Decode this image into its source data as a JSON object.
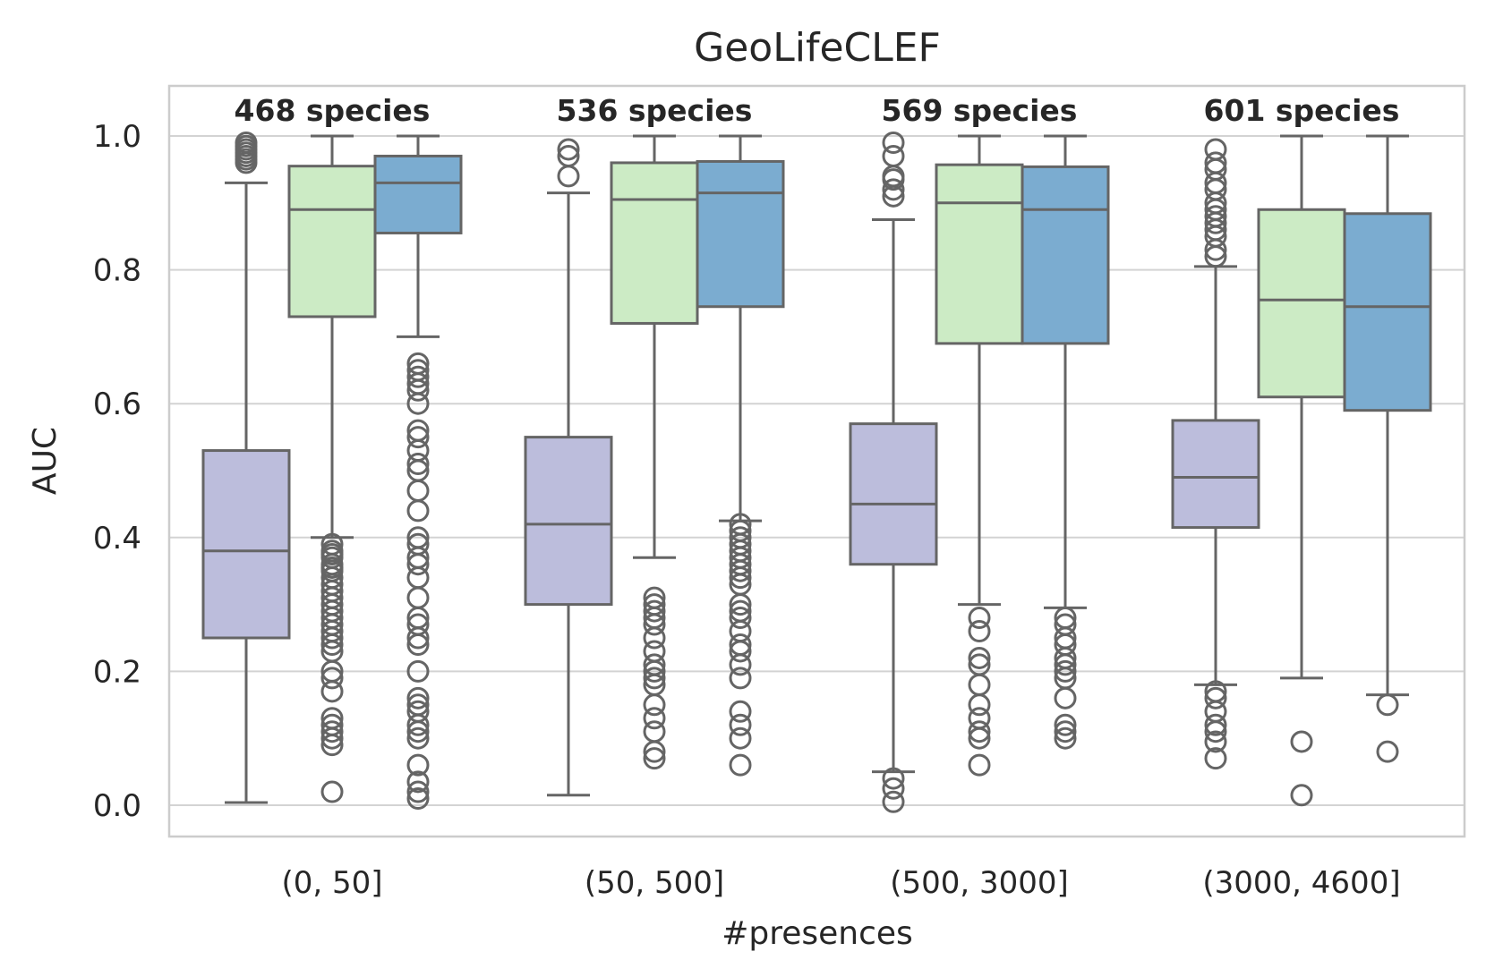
{
  "chart_data": {
    "type": "box",
    "title": "GeoLifeCLEF",
    "xlabel": "#presences",
    "ylabel": "AUC",
    "ylim": [
      -0.045,
      1.075
    ],
    "yticks": [
      "0.0",
      "0.2",
      "0.4",
      "0.6",
      "0.8",
      "1.0"
    ],
    "ytick_values": [
      0.0,
      0.2,
      0.4,
      0.6,
      0.8,
      1.0
    ],
    "grid": true,
    "colors": [
      "#bcbddc",
      "#ccebc5",
      "#7bacd0"
    ],
    "groups": [
      {
        "category": "(0, 50]",
        "annotation": "468 species",
        "boxes": [
          {
            "q1": 0.25,
            "median": 0.38,
            "q3": 0.53,
            "whisker_low": 0.004,
            "whisker_high": 0.93,
            "fliers": [
              0.96,
              0.965,
              0.97,
              0.975,
              0.98,
              0.985,
              0.99
            ]
          },
          {
            "q1": 0.73,
            "median": 0.89,
            "q3": 0.955,
            "whisker_low": 0.4,
            "whisker_high": 1.0,
            "fliers": [
              0.39,
              0.38,
              0.375,
              0.37,
              0.36,
              0.355,
              0.35,
              0.34,
              0.33,
              0.32,
              0.31,
              0.3,
              0.29,
              0.28,
              0.27,
              0.26,
              0.25,
              0.24,
              0.23,
              0.2,
              0.19,
              0.17,
              0.13,
              0.12,
              0.11,
              0.1,
              0.09,
              0.02
            ]
          },
          {
            "q1": 0.855,
            "median": 0.93,
            "q3": 0.97,
            "whisker_low": 0.7,
            "whisker_high": 1.0,
            "fliers": [
              0.66,
              0.65,
              0.64,
              0.63,
              0.62,
              0.6,
              0.56,
              0.55,
              0.53,
              0.51,
              0.5,
              0.47,
              0.44,
              0.4,
              0.39,
              0.37,
              0.36,
              0.34,
              0.31,
              0.28,
              0.27,
              0.25,
              0.24,
              0.2,
              0.16,
              0.15,
              0.14,
              0.12,
              0.11,
              0.1,
              0.06,
              0.035,
              0.02,
              0.01
            ]
          }
        ]
      },
      {
        "category": "(50, 500]",
        "annotation": "536 species",
        "boxes": [
          {
            "q1": 0.3,
            "median": 0.42,
            "q3": 0.55,
            "whisker_low": 0.015,
            "whisker_high": 0.915,
            "fliers": [
              0.94,
              0.97,
              0.98
            ]
          },
          {
            "q1": 0.72,
            "median": 0.905,
            "q3": 0.96,
            "whisker_low": 0.37,
            "whisker_high": 1.0,
            "fliers": [
              0.31,
              0.3,
              0.29,
              0.28,
              0.27,
              0.25,
              0.23,
              0.21,
              0.2,
              0.19,
              0.18,
              0.15,
              0.13,
              0.11,
              0.08,
              0.07
            ]
          },
          {
            "q1": 0.745,
            "median": 0.915,
            "q3": 0.962,
            "whisker_low": 0.425,
            "whisker_high": 1.0,
            "fliers": [
              0.42,
              0.41,
              0.4,
              0.39,
              0.38,
              0.37,
              0.36,
              0.35,
              0.34,
              0.33,
              0.3,
              0.29,
              0.28,
              0.26,
              0.24,
              0.23,
              0.21,
              0.19,
              0.14,
              0.12,
              0.1,
              0.06
            ]
          }
        ]
      },
      {
        "category": "(500, 3000]",
        "annotation": "569 species",
        "boxes": [
          {
            "q1": 0.36,
            "median": 0.45,
            "q3": 0.57,
            "whisker_low": 0.05,
            "whisker_high": 0.875,
            "fliers": [
              0.91,
              0.92,
              0.935,
              0.94,
              0.97,
              0.99,
              0.04,
              0.025,
              0.005
            ]
          },
          {
            "q1": 0.69,
            "median": 0.9,
            "q3": 0.957,
            "whisker_low": 0.3,
            "whisker_high": 1.0,
            "fliers": [
              0.28,
              0.26,
              0.22,
              0.21,
              0.18,
              0.15,
              0.13,
              0.11,
              0.1,
              0.06
            ]
          },
          {
            "q1": 0.69,
            "median": 0.89,
            "q3": 0.954,
            "whisker_low": 0.295,
            "whisker_high": 1.0,
            "fliers": [
              0.28,
              0.27,
              0.25,
              0.24,
              0.22,
              0.21,
              0.2,
              0.19,
              0.16,
              0.12,
              0.11,
              0.1
            ]
          }
        ]
      },
      {
        "category": "(3000, 4600]",
        "annotation": "601 species",
        "boxes": [
          {
            "q1": 0.415,
            "median": 0.49,
            "q3": 0.575,
            "whisker_low": 0.18,
            "whisker_high": 0.805,
            "fliers": [
              0.82,
              0.83,
              0.85,
              0.86,
              0.87,
              0.88,
              0.89,
              0.9,
              0.92,
              0.93,
              0.95,
              0.96,
              0.98,
              0.17,
              0.16,
              0.14,
              0.12,
              0.11,
              0.095,
              0.07
            ]
          },
          {
            "q1": 0.61,
            "median": 0.755,
            "q3": 0.89,
            "whisker_low": 0.19,
            "whisker_high": 1.0,
            "fliers": [
              0.095,
              0.015
            ]
          },
          {
            "q1": 0.59,
            "median": 0.745,
            "q3": 0.884,
            "whisker_low": 0.165,
            "whisker_high": 1.0,
            "fliers": [
              0.15,
              0.08
            ]
          }
        ]
      }
    ]
  }
}
